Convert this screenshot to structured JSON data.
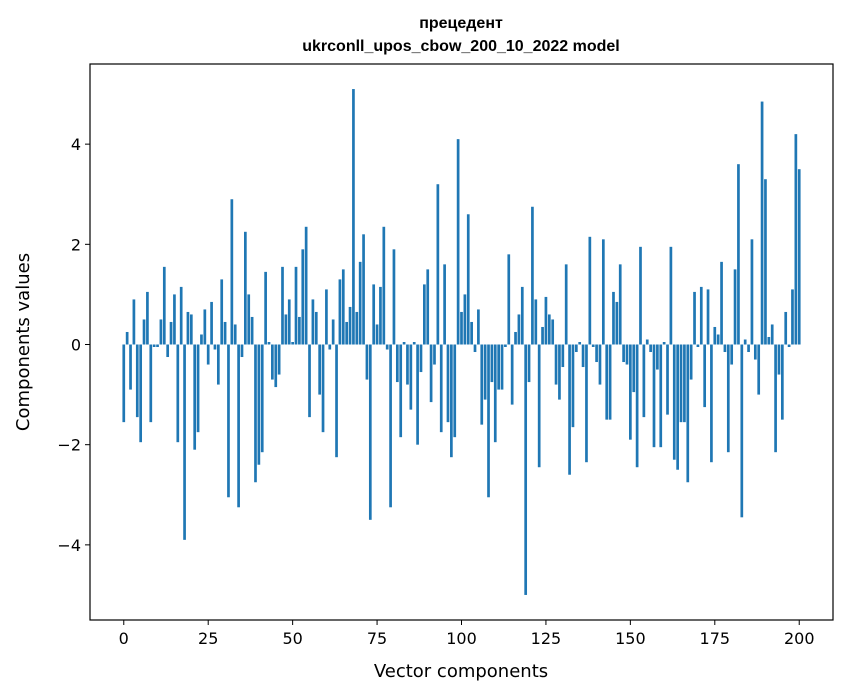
{
  "chart_data": {
    "type": "bar",
    "title": "прецедент",
    "subtitle": "ukrconll_upos_cbow_200_10_2022 model",
    "xlabel": "Vector components",
    "ylabel": "Components values",
    "xlim": [
      -10,
      210
    ],
    "ylim": [
      -5.5,
      5.6
    ],
    "xticks": [
      0,
      25,
      50,
      75,
      100,
      125,
      150,
      175,
      200
    ],
    "yticks": [
      -4,
      -2,
      0,
      2,
      4
    ],
    "ytick_labels": [
      "−4",
      "−2",
      "0",
      "2",
      "4"
    ],
    "bar_color": "#1f77b4",
    "grid": false,
    "values": [
      -1.55,
      0.25,
      -0.9,
      0.9,
      -1.45,
      -1.95,
      0.5,
      1.05,
      -1.55,
      -0.05,
      -0.05,
      0.5,
      1.55,
      -0.25,
      0.45,
      1.0,
      -1.95,
      1.15,
      -3.9,
      0.65,
      0.6,
      -2.1,
      -1.75,
      0.2,
      0.7,
      -0.4,
      0.85,
      -0.1,
      -0.8,
      1.3,
      0.45,
      -3.05,
      2.9,
      0.4,
      -3.25,
      -0.25,
      2.25,
      1.0,
      0.55,
      -2.75,
      -2.4,
      -2.15,
      1.45,
      0.05,
      -0.7,
      -0.85,
      -0.6,
      1.55,
      0.6,
      0.9,
      0.05,
      1.55,
      0.55,
      1.9,
      2.35,
      -1.45,
      0.9,
      0.65,
      -1.0,
      -1.75,
      1.1,
      -0.1,
      0.5,
      -2.25,
      1.3,
      1.5,
      0.45,
      0.75,
      5.1,
      0.65,
      1.65,
      2.2,
      -0.7,
      -3.5,
      1.2,
      0.4,
      1.15,
      2.35,
      -0.1,
      -3.25,
      1.9,
      -0.75,
      -1.85,
      0.05,
      -0.8,
      -1.3,
      0.05,
      -2.0,
      -0.55,
      1.2,
      1.5,
      -1.15,
      -0.4,
      3.2,
      -1.75,
      1.6,
      -1.55,
      -2.25,
      -1.85,
      4.1,
      0.65,
      1.0,
      2.6,
      0.45,
      -0.15,
      0.7,
      -1.6,
      -1.1,
      -3.05,
      -0.75,
      -1.95,
      -0.9,
      -0.9,
      -0.05,
      1.8,
      -1.2,
      0.25,
      0.6,
      1.15,
      -5.0,
      -0.75,
      2.75,
      0.9,
      -2.45,
      0.35,
      0.95,
      0.6,
      0.5,
      -0.8,
      -1.1,
      -0.45,
      1.6,
      -2.6,
      -1.65,
      -0.15,
      0.05,
      -0.45,
      -2.35,
      2.15,
      -0.05,
      -0.35,
      -0.8,
      2.1,
      -1.5,
      -1.5,
      1.05,
      0.85,
      1.6,
      -0.35,
      -0.4,
      -1.9,
      -0.95,
      -2.45,
      1.95,
      -1.45,
      0.1,
      -0.15,
      -2.05,
      -0.5,
      -2.05,
      0.05,
      -1.4,
      1.95,
      -2.3,
      -2.5,
      -1.55,
      -1.55,
      -2.75,
      -0.7,
      1.05,
      -0.05,
      1.15,
      -1.25,
      1.1,
      -2.35,
      0.35,
      0.2,
      1.65,
      -0.15,
      -2.15,
      -0.4,
      1.5,
      3.6,
      -3.45,
      0.1,
      -0.15,
      2.1,
      -0.3,
      -1.0,
      4.85,
      3.3,
      0.15,
      0.4,
      -2.15,
      -0.6,
      -1.5,
      0.65,
      -0.05,
      1.1,
      4.2,
      3.5
    ]
  }
}
